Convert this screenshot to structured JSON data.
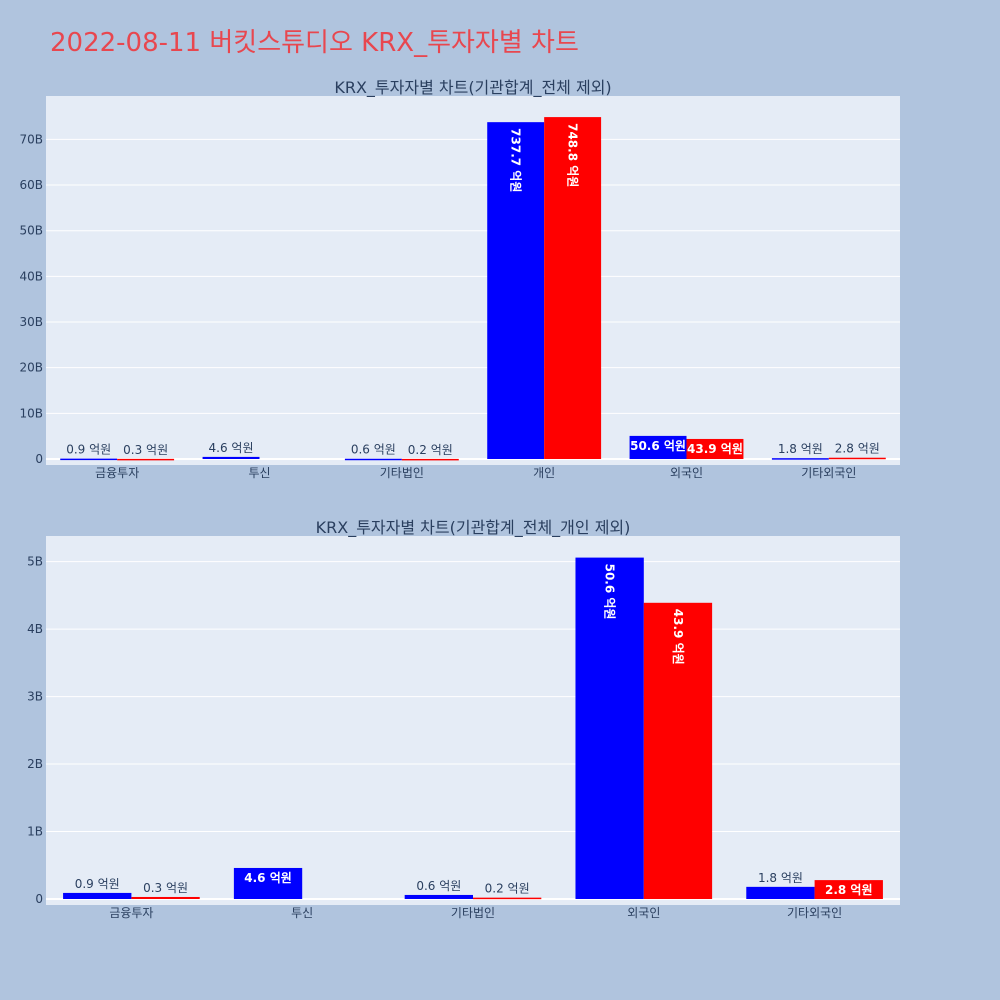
{
  "page": {
    "title": "2022-08-11 버킷스튜디오 KRX_투자자별 차트"
  },
  "colors": {
    "background": "#b0c4de",
    "plot_bg": "#e5ecf6",
    "title": "#e8474f",
    "series_a": "#0000ff",
    "series_b": "#ff0000"
  },
  "chart_data": [
    {
      "type": "bar",
      "title": "KRX_투자자별 차트(기관합계_전체 제외)",
      "categories": [
        "금융투자",
        "투신",
        "기타법인",
        "개인",
        "외국인",
        "기타외국인"
      ],
      "series": [
        {
          "color": "#0000ff",
          "values": [
            0.09,
            0.46,
            0.06,
            73.77,
            5.06,
            0.18
          ],
          "labels": [
            "0.9 억원",
            "4.6 억원",
            "0.6 억원",
            "737.7 억원",
            "50.6 억원",
            "1.8 억원"
          ]
        },
        {
          "color": "#ff0000",
          "values": [
            0.03,
            0,
            0.02,
            74.88,
            4.39,
            0.28
          ],
          "labels": [
            "0.3 억원",
            "",
            "0.2 억원",
            "748.8 억원",
            "43.9 억원",
            "2.8 억원"
          ]
        }
      ],
      "yticks": [
        0,
        10,
        20,
        30,
        40,
        50,
        60,
        70
      ],
      "ytick_labels": [
        "0",
        "10B",
        "20B",
        "30B",
        "40B",
        "50B",
        "60B",
        "70B"
      ],
      "ylim": [
        0,
        79.5
      ],
      "grid": true
    },
    {
      "type": "bar",
      "title": "KRX_투자자별 차트(기관합계_전체_개인 제외)",
      "categories": [
        "금융투자",
        "투신",
        "기타법인",
        "외국인",
        "기타외국인"
      ],
      "series": [
        {
          "color": "#0000ff",
          "values": [
            0.09,
            0.46,
            0.06,
            5.06,
            0.18
          ],
          "labels": [
            "0.9 억원",
            "4.6 억원",
            "0.6 억원",
            "50.6 억원",
            "1.8 억원"
          ]
        },
        {
          "color": "#ff0000",
          "values": [
            0.03,
            0,
            0.02,
            4.39,
            0.28
          ],
          "labels": [
            "0.3 억원",
            "",
            "0.2 억원",
            "43.9 억원",
            "2.8 억원"
          ]
        }
      ],
      "yticks": [
        0,
        1,
        2,
        3,
        4,
        5
      ],
      "ytick_labels": [
        "0",
        "1B",
        "2B",
        "3B",
        "4B",
        "5B"
      ],
      "ylim": [
        0,
        5.38
      ],
      "grid": true
    }
  ]
}
